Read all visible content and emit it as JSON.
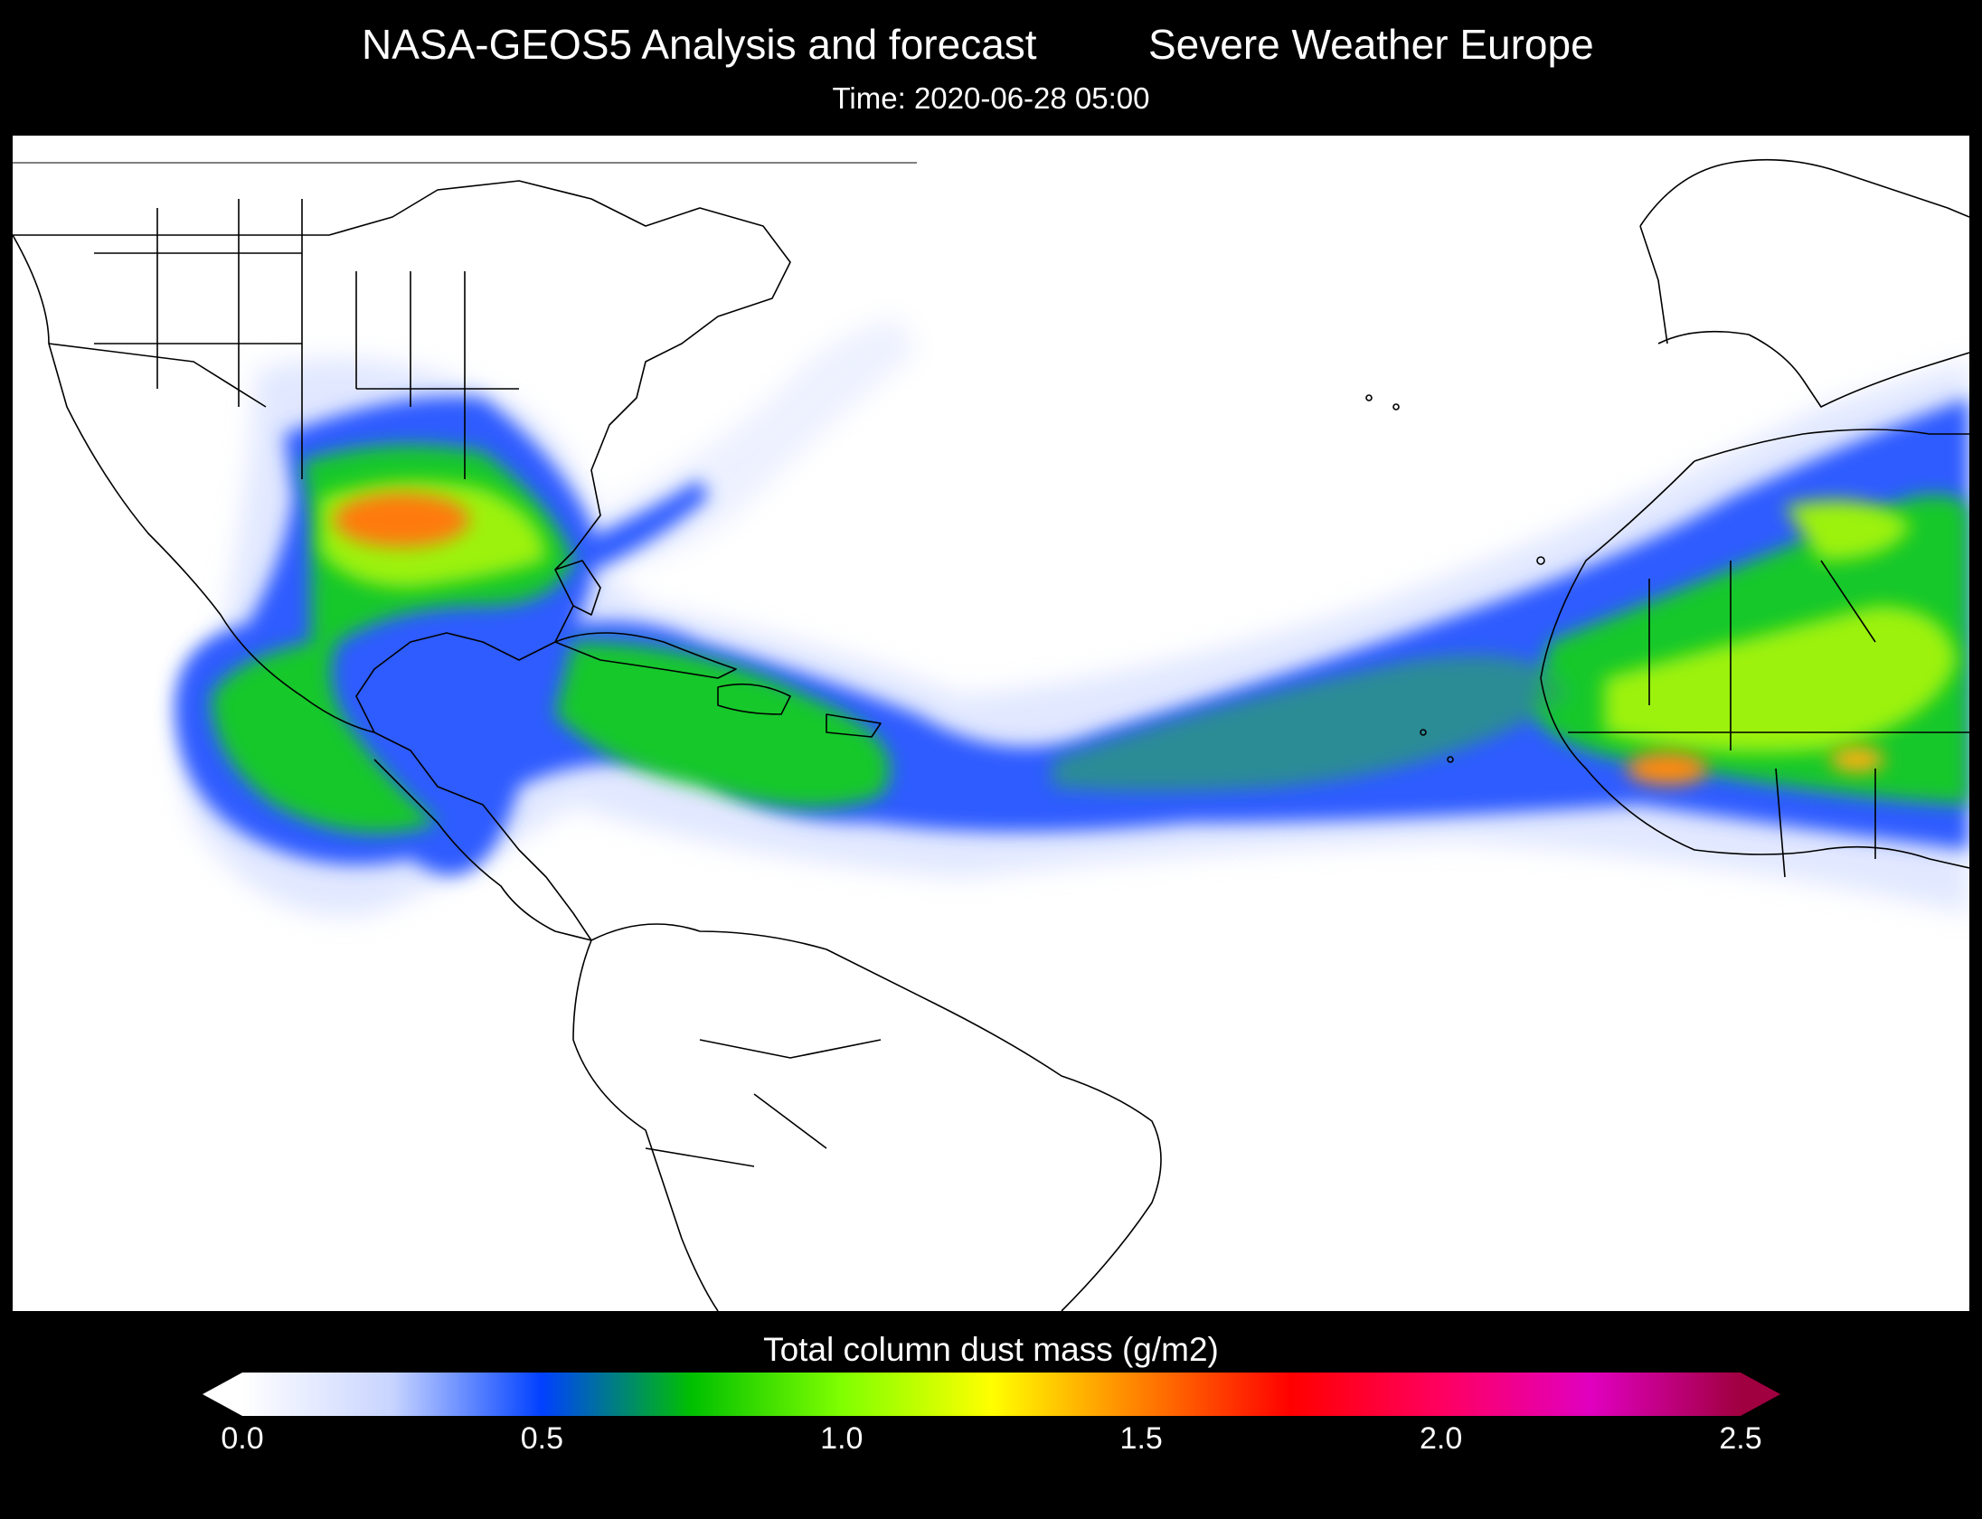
{
  "header": {
    "title": "NASA-GEOS5  Analysis and forecast",
    "brand": "Severe Weather Europe",
    "time": "Time: 2020-06-28 05:00"
  },
  "map": {
    "region": "North Atlantic, Americas, West Africa",
    "variable": "Total column dust mass",
    "dust_regions": [
      {
        "name": "US Gulf Coast plume",
        "level": 1.6
      },
      {
        "name": "Central America / Mexico plume",
        "level": 1.0
      },
      {
        "name": "Caribbean plume",
        "level": 1.0
      },
      {
        "name": "Trans-Atlantic dust band",
        "level": 0.7
      },
      {
        "name": "Sahara / Sahel",
        "level": 1.5
      }
    ]
  },
  "colorbar": {
    "title": "Total column dust mass (g/m2)",
    "min": 0.0,
    "max": 2.5,
    "ticks": [
      "0.0",
      "0.5",
      "1.0",
      "1.5",
      "2.0",
      "2.5"
    ],
    "colors": [
      "#ffffff",
      "#c8d4ff",
      "#0040ff",
      "#00c000",
      "#80ff00",
      "#ffff00",
      "#ff8000",
      "#ff0000",
      "#ff0060",
      "#e000c0",
      "#a00040"
    ]
  }
}
